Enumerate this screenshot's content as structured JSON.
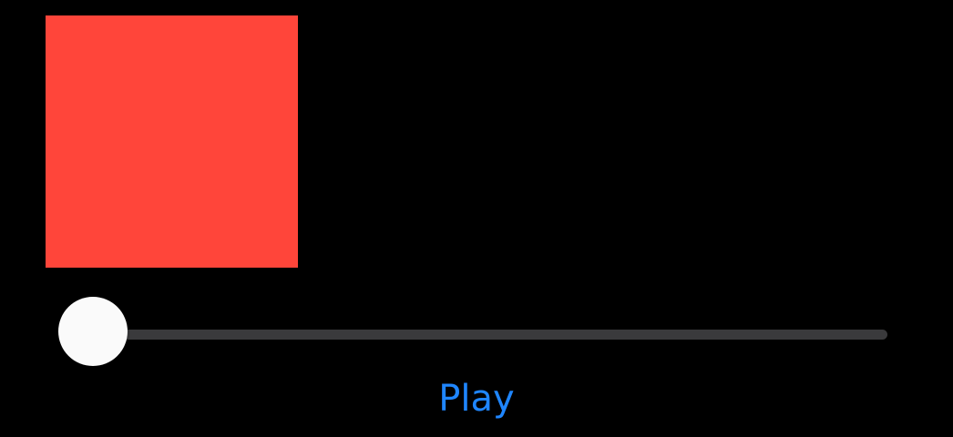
{
  "colors": {
    "background": "#000000",
    "box": "#ff453a",
    "track": "#3a3a3c",
    "thumb": "#fafafa",
    "accent": "#1f86ff"
  },
  "slider": {
    "value": 0.0
  },
  "play_button": {
    "label": "Play"
  }
}
